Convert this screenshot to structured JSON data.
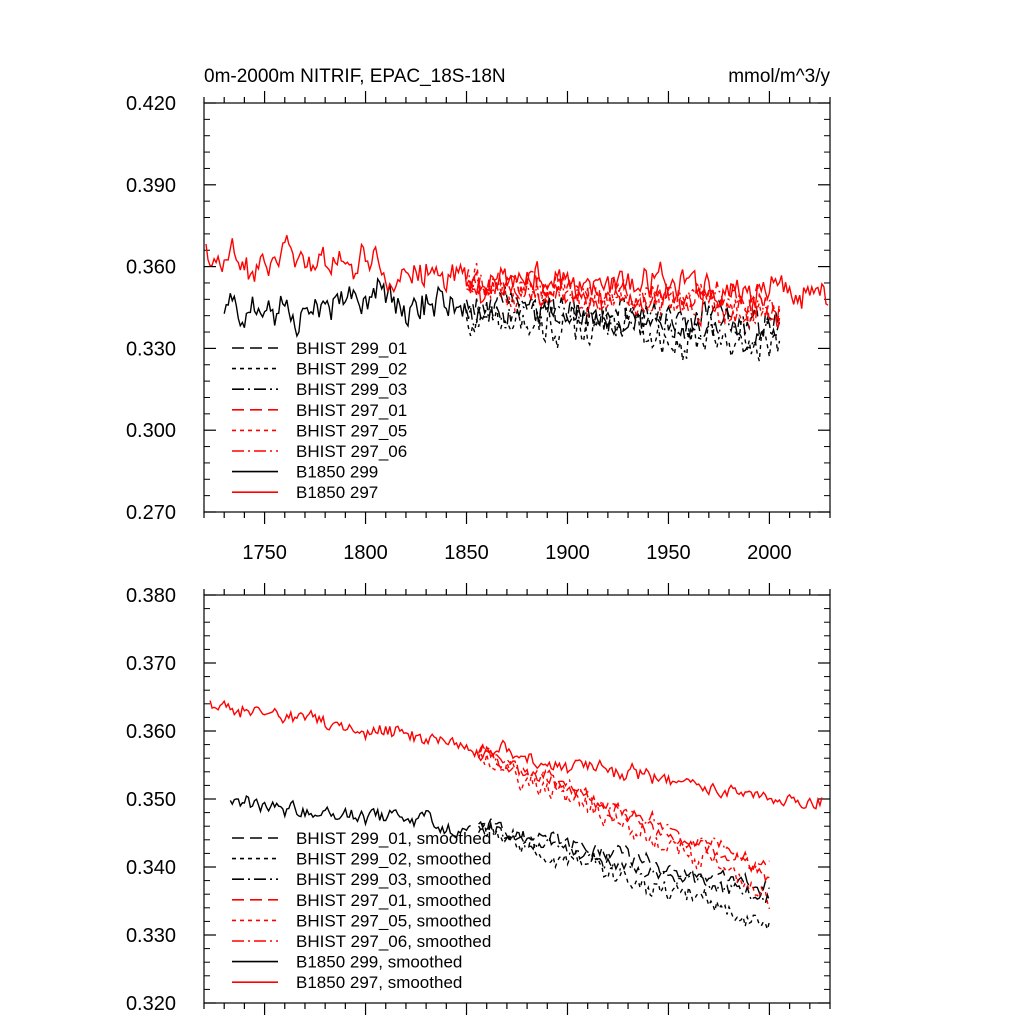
{
  "figure": {
    "title_left": "0m-2000m NITRIF, EPAC_18S-18N",
    "title_right": "mmol/m^3/y"
  },
  "chart_data": [
    {
      "type": "line",
      "title": "0m-2000m NITRIF, EPAC_18S-18N",
      "units": "mmol/m^3/y",
      "xlim": [
        1720,
        2030
      ],
      "ylim": [
        0.27,
        0.42
      ],
      "x_ticks": [
        1750,
        1800,
        1850,
        1900,
        1950,
        2000
      ],
      "x_tick_labels": [
        "1750",
        "1800",
        "1850",
        "1900",
        "1950",
        "2000"
      ],
      "y_ticks": [
        0.27,
        0.3,
        0.33,
        0.36,
        0.39,
        0.42
      ],
      "y_tick_labels": [
        "0.270",
        "0.300",
        "0.330",
        "0.360",
        "0.390",
        "0.420"
      ],
      "legend_position": "lower-left",
      "series": [
        {
          "name": "BHIST 299_01",
          "color": "#000000",
          "dash": "long-dash",
          "x_range": [
            1850,
            2005
          ],
          "level_start": 0.345,
          "level_end": 0.338,
          "noise": 0.016,
          "seed": 11
        },
        {
          "name": "BHIST 299_02",
          "color": "#000000",
          "dash": "short-dash",
          "x_range": [
            1850,
            2005
          ],
          "level_start": 0.343,
          "level_end": 0.334,
          "noise": 0.019,
          "seed": 12
        },
        {
          "name": "BHIST 299_03",
          "color": "#000000",
          "dash": "dash-dot",
          "x_range": [
            1850,
            2005
          ],
          "level_start": 0.344,
          "level_end": 0.337,
          "noise": 0.016,
          "seed": 13
        },
        {
          "name": "BHIST 297_01",
          "color": "#ff0000",
          "dash": "long-dash",
          "x_range": [
            1850,
            2005
          ],
          "level_start": 0.356,
          "level_end": 0.344,
          "noise": 0.016,
          "seed": 21
        },
        {
          "name": "BHIST 297_05",
          "color": "#ff0000",
          "dash": "short-dash",
          "x_range": [
            1850,
            2005
          ],
          "level_start": 0.355,
          "level_end": 0.343,
          "noise": 0.017,
          "seed": 22
        },
        {
          "name": "BHIST 297_06",
          "color": "#ff0000",
          "dash": "dash-dot",
          "x_range": [
            1850,
            2005
          ],
          "level_start": 0.356,
          "level_end": 0.345,
          "noise": 0.016,
          "seed": 23
        },
        {
          "name": "B1850 299",
          "color": "#000000",
          "dash": "solid",
          "x_range": [
            1730,
            1850
          ],
          "level_start": 0.347,
          "level_end": 0.345,
          "noise": 0.017,
          "seed": 31
        },
        {
          "name": "B1850 297",
          "color": "#ff0000",
          "dash": "solid",
          "x_range": [
            1721,
            2029
          ],
          "level_start": 0.363,
          "level_end": 0.35,
          "noise": 0.016,
          "seed": 41
        }
      ]
    },
    {
      "type": "line",
      "title": "",
      "xlim": [
        1720,
        2030
      ],
      "ylim": [
        0.32,
        0.38
      ],
      "x_ticks": [
        1750,
        1800,
        1850,
        1900,
        1950,
        2000
      ],
      "x_tick_labels": [],
      "y_ticks": [
        0.32,
        0.33,
        0.34,
        0.35,
        0.36,
        0.37,
        0.38
      ],
      "y_tick_labels": [
        "0.320",
        "0.330",
        "0.340",
        "0.350",
        "0.360",
        "0.370",
        "0.380"
      ],
      "legend_position": "lower-left",
      "series": [
        {
          "name": "BHIST 299_01, smoothed",
          "color": "#000000",
          "dash": "long-dash",
          "x_range": [
            1856,
            2000
          ],
          "level_start": 0.346,
          "level_end": 0.337,
          "noise": 0.003,
          "seed": 51
        },
        {
          "name": "BHIST 299_02, smoothed",
          "color": "#000000",
          "dash": "short-dash",
          "x_range": [
            1856,
            2000
          ],
          "level_start": 0.345,
          "level_end": 0.332,
          "noise": 0.004,
          "seed": 52
        },
        {
          "name": "BHIST 299_03, smoothed",
          "color": "#000000",
          "dash": "dash-dot",
          "x_range": [
            1856,
            2000
          ],
          "level_start": 0.346,
          "level_end": 0.335,
          "noise": 0.003,
          "seed": 53
        },
        {
          "name": "BHIST 297_01, smoothed",
          "color": "#ff0000",
          "dash": "long-dash",
          "x_range": [
            1856,
            2000
          ],
          "level_start": 0.357,
          "level_end": 0.339,
          "noise": 0.003,
          "seed": 61
        },
        {
          "name": "BHIST 297_05, smoothed",
          "color": "#ff0000",
          "dash": "short-dash",
          "x_range": [
            1856,
            2000
          ],
          "level_start": 0.356,
          "level_end": 0.336,
          "noise": 0.004,
          "seed": 62
        },
        {
          "name": "BHIST 297_06, smoothed",
          "color": "#ff0000",
          "dash": "dash-dot",
          "x_range": [
            1856,
            2000
          ],
          "level_start": 0.357,
          "level_end": 0.34,
          "noise": 0.003,
          "seed": 63
        },
        {
          "name": "B1850 299, smoothed",
          "color": "#000000",
          "dash": "solid",
          "x_range": [
            1733,
            1852
          ],
          "level_start": 0.35,
          "level_end": 0.346,
          "noise": 0.003,
          "seed": 71
        },
        {
          "name": "B1850 297, smoothed",
          "color": "#ff0000",
          "dash": "solid",
          "x_range": [
            1723,
            2026
          ],
          "level_start": 0.364,
          "level_end": 0.349,
          "noise": 0.003,
          "seed": 81
        }
      ]
    }
  ]
}
